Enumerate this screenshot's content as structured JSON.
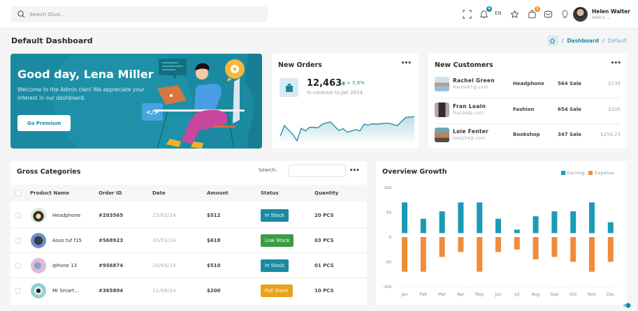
{
  "header": {
    "search_placeholder": "Search Oliva ..",
    "icons": [
      "fullscreen-icon",
      "bell-icon",
      "language",
      "star-icon",
      "bag-icon",
      "mail-icon",
      "bulb-icon"
    ],
    "notification_count": "4",
    "cart_count": "2",
    "language": "EN",
    "user": {
      "name": "Helen Walter",
      "role": "Admin ⌄"
    },
    "colors": {
      "notif_badge": "#1b8aa1",
      "cart_badge": "#f08c2a"
    }
  },
  "page": {
    "title": "Default Dashboard",
    "breadcrumb": {
      "sep": "/",
      "parent": "Dashboard",
      "current": "Default"
    }
  },
  "hero": {
    "greeting": "Good day, Lena Miller",
    "message": "Welcome to the Admin clan! We appreciate your interest in our dashboard.",
    "button": "Go Premium",
    "code_tag": "</>",
    "bg_color": "#1b8aa1"
  },
  "orders": {
    "title": "New Orders",
    "menu": "•••",
    "value": "12,463",
    "change": "+ 5.8%",
    "subtitle": "In contrast to Jan 2024",
    "sparkline": [
      18,
      42,
      32,
      22,
      8,
      36,
      30,
      38,
      38,
      37,
      45,
      48,
      50,
      40,
      31,
      35,
      27,
      30,
      33,
      30,
      45,
      43,
      46,
      45,
      46,
      47,
      47,
      44,
      42,
      52,
      60,
      61,
      62
    ]
  },
  "customers": {
    "title": "New Customers",
    "menu": "•••",
    "rows": [
      {
        "name": "Rachel Green",
        "email": "Rache87@.com",
        "category": "Headphone",
        "sales": "564 Sale",
        "price": "$239"
      },
      {
        "name": "Fran Loain",
        "email": "fran34@.com",
        "category": "Fashion",
        "sales": "654 Sale",
        "price": "$326"
      },
      {
        "name": "Loie Fenter",
        "email": "loie234@.com",
        "category": "Bookshop",
        "sales": "347 Sale",
        "price": "$254.23"
      }
    ]
  },
  "gross": {
    "title": "Gross Categories",
    "search_label": "Search:",
    "search_value": "",
    "menu": "•••",
    "columns": [
      "Product Name",
      "Order ID",
      "Date",
      "Amount",
      "Status",
      "Quantity"
    ],
    "rows": [
      {
        "product": "Headphone",
        "order_id": "#203565",
        "date": "15/02/24",
        "amount": "$512",
        "status": "In Stock",
        "qty": "20 PCS"
      },
      {
        "product": "Asus tuf f15",
        "order_id": "#568923",
        "date": "30/03/24",
        "amount": "$618",
        "status": "Low Stock",
        "qty": "03 PCS"
      },
      {
        "product": "Iphone 13",
        "order_id": "#956874",
        "date": "20/05/24",
        "amount": "$510",
        "status": "In Stock",
        "qty": "01 PCS"
      },
      {
        "product": "Mi Smart...",
        "order_id": "#365894",
        "date": "11/08/24",
        "amount": "$200",
        "status": "Full Stock",
        "qty": "10 PCS"
      }
    ],
    "status_colors": {
      "In Stock": "#1b8aa1",
      "Low Stock": "#3d9b45",
      "Full Stock": "#e9a21b"
    }
  },
  "growth": {
    "title": "Overview Growth",
    "legend": [
      "Earning",
      "Expense"
    ]
  },
  "chart_data": {
    "type": "bar",
    "title": "Overview Growth",
    "xlabel": "",
    "ylabel": "",
    "categories": [
      "Jan",
      "Feb",
      "Mar",
      "Apr",
      "May",
      "Jun",
      "Jul",
      "Aug",
      "Sep",
      "Oct",
      "Nov",
      "Dec"
    ],
    "series": [
      {
        "name": "Earning",
        "color": "#1b9ab5",
        "values": [
          70,
          37,
          52,
          70,
          70,
          37,
          15,
          42,
          52,
          52,
          70,
          30
        ]
      },
      {
        "name": "Expense",
        "color": "#f08c3a",
        "values": [
          -70,
          -70,
          -40,
          -30,
          -70,
          -30,
          -25,
          -45,
          -40,
          -50,
          -70,
          -50
        ]
      }
    ],
    "ylim": [
      -100,
      100
    ],
    "yticks": [
      100,
      50,
      0,
      -50,
      -100
    ],
    "legend_position": "top-right",
    "grid": false
  }
}
